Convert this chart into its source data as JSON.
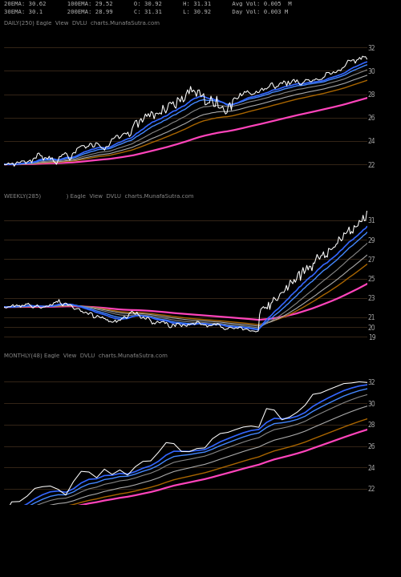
{
  "background_color": "#000000",
  "panel_bg": "#000000",
  "grid_color": "#4a3520",
  "text_color": "#aaaaaa",
  "title_line1": "20EMA: 30.62      100EMA: 29.52      O: 30.92      H: 31.31      Avg Vol: 0.005  M",
  "title_line2": "30EMA: 30.1       200EMA: 28.99      C: 31.31      L: 30.92      Day Vol: 0.003 M",
  "panel1_label": "DAILY(250) Eagle  View  DVLU  charts.MunafaSutra.com",
  "panel2_label": "WEEKLY(285)              ) Eagle  View  DVLU  charts.MunafaSutra.com",
  "panel3_label": "MONTHLY(48) Eagle  View  DVLU  charts.MunafaSutra.com",
  "panel1_yticks": [
    22,
    24,
    26,
    28,
    30,
    32
  ],
  "panel2_yticks": [
    19,
    20,
    21,
    23,
    25,
    27,
    29,
    31
  ],
  "panel3_yticks": [
    22,
    24,
    26,
    28,
    30,
    32
  ],
  "line_colors": {
    "price": "#ffffff",
    "ema_short1": "#3366ff",
    "ema_short2": "#4488ff",
    "ema_mid1": "#888888",
    "ema_mid2": "#aaaaaa",
    "ema_long1": "#aa6600",
    "ema_long2": "#ff44bb"
  },
  "panel1_ylim": [
    21.5,
    32.5
  ],
  "panel2_ylim": [
    18.5,
    32.0
  ],
  "panel3_ylim": [
    20.5,
    33.0
  ]
}
